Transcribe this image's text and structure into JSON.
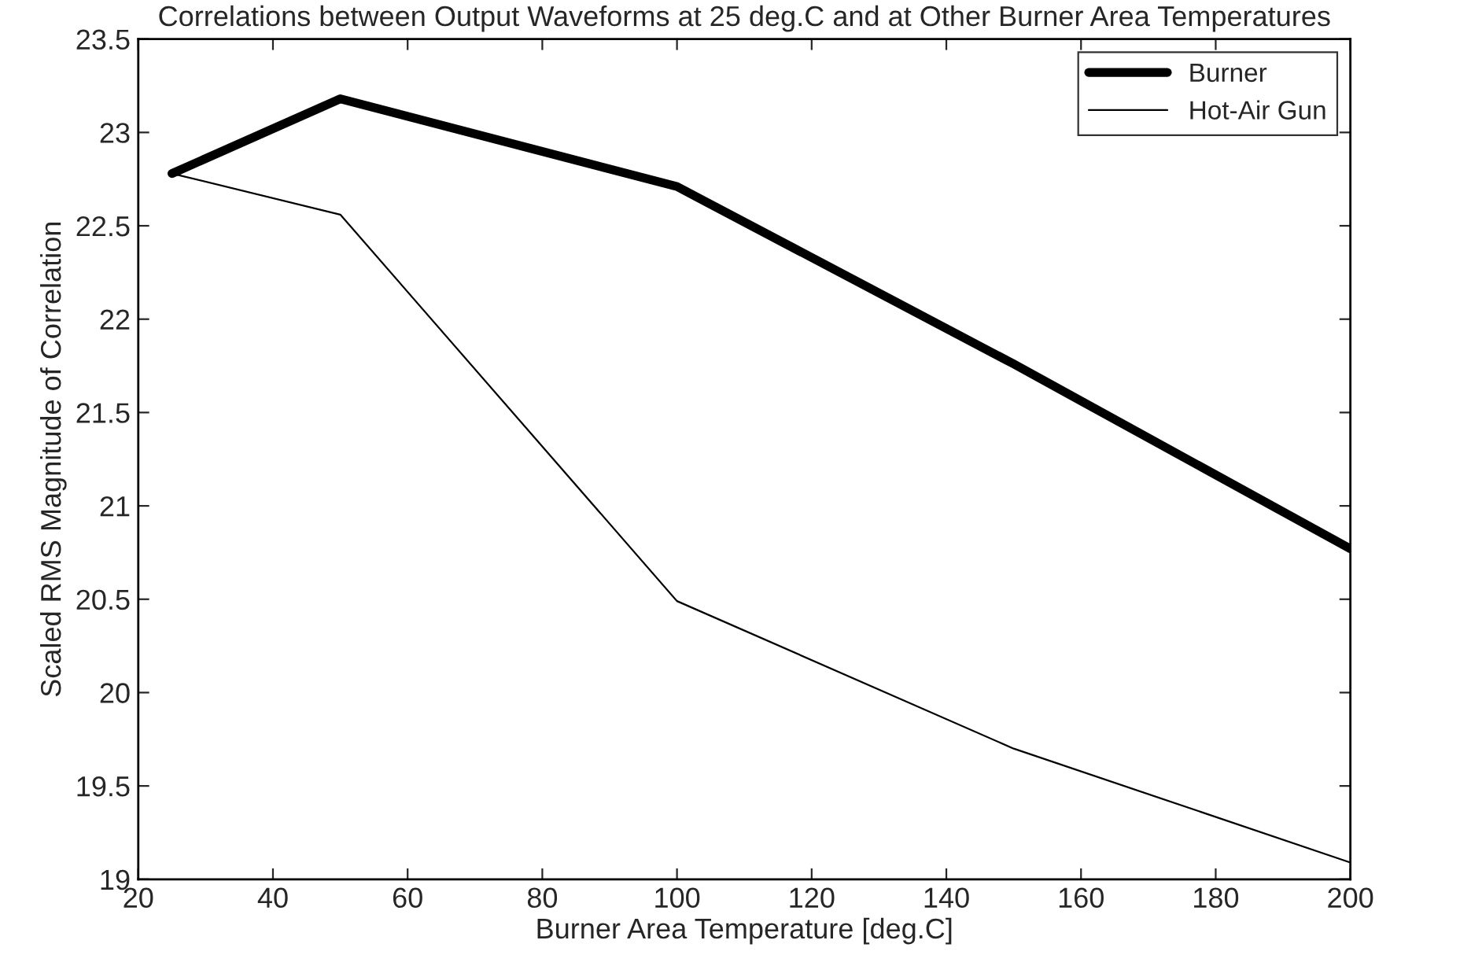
{
  "chart_data": {
    "type": "line",
    "title": "Correlations between Output Waveforms at 25 deg.C and at Other Burner Area Temperatures",
    "xlabel": "Burner Area Temperature [deg.C]",
    "ylabel": "Scaled RMS Magnitude of Correlation",
    "x": [
      25,
      50,
      100,
      150,
      200
    ],
    "series": [
      {
        "name": "Burner",
        "color": "#000000",
        "values": [
          22.78,
          23.18,
          22.71,
          21.76,
          20.77
        ]
      },
      {
        "name": "Hot-Air Gun",
        "color": "#000000",
        "values": [
          22.78,
          22.56,
          20.49,
          19.7,
          19.09
        ]
      }
    ],
    "xlim": [
      20,
      200
    ],
    "xticks": [
      20,
      40,
      60,
      80,
      100,
      120,
      140,
      160,
      180,
      200
    ],
    "ylim": [
      19,
      23.5
    ],
    "yticks": [
      19,
      19.5,
      20,
      20.5,
      21,
      21.5,
      22,
      22.5,
      23,
      23.5
    ],
    "grid": false,
    "legend": "top right",
    "marker": "none",
    "line_style": "solid"
  }
}
